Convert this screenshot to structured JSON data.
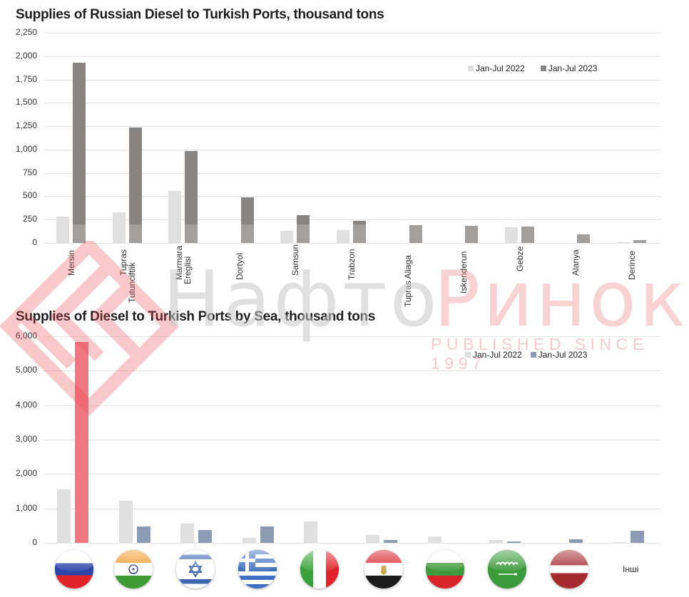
{
  "chart_data": [
    {
      "type": "bar",
      "title": "Supplies of Russian Diesel to Turkish Ports, thousand tons",
      "xlabel": "",
      "ylabel": "thousand tons",
      "ylim": [
        0,
        2250
      ],
      "yticks": [
        "0",
        "250",
        "500",
        "750",
        "1,000",
        "1,250",
        "1,500",
        "1,750",
        "2,000",
        "2,250"
      ],
      "grid": true,
      "legend_position": "top-right",
      "categories": [
        "Mersin",
        "Tupras Tutunciftlik",
        "Marmara Ereglisi",
        "Dortyol",
        "Samsun",
        "Trabzon",
        "Tupras Aliaga",
        "Iskenderun",
        "Gebze",
        "Alanya",
        "Derince"
      ],
      "category_labels": [
        [
          "Mersin"
        ],
        [
          "Tupras",
          "Tutunciftlik"
        ],
        [
          "Marmara",
          "Ereglisi"
        ],
        [
          "Dortyol"
        ],
        [
          "Samsun"
        ],
        [
          "Trabzon"
        ],
        [
          "Tupras Aliaga"
        ],
        [
          "Iskenderun"
        ],
        [
          "Gebze"
        ],
        [
          "Alanya"
        ],
        [
          "Derince"
        ]
      ],
      "series": [
        {
          "name": "Jan-Jul 2022",
          "color": "#e1e0e0",
          "values": [
            280,
            325,
            555,
            0,
            130,
            135,
            0,
            0,
            165,
            0,
            5
          ]
        },
        {
          "name": "Jan-Jul 2023",
          "color": "#888482",
          "values": [
            1930,
            1235,
            985,
            489,
            297,
            238,
            189,
            183,
            177,
            91,
            29
          ]
        }
      ],
      "data_labels": [
        "1,930",
        "1,235",
        "985",
        "489",
        "297",
        "238",
        "189",
        "183",
        "177",
        "91",
        "29"
      ]
    },
    {
      "type": "bar",
      "title": "Supplies of Diesel to Turkish Ports by Sea, thousand tons",
      "xlabel": "",
      "ylabel": "thousand tons",
      "ylim": [
        0,
        6000
      ],
      "yticks": [
        "0",
        "1,000",
        "2,000",
        "3,000",
        "4,000",
        "5,000",
        "6,000"
      ],
      "grid": true,
      "legend_position": "top-right",
      "categories": [
        "Russia",
        "India",
        "Israel",
        "Greece",
        "Italy",
        "Egypt",
        "Bulgaria",
        "Saudi Arabia",
        "Latvia",
        "Інші"
      ],
      "series": [
        {
          "name": "Jan-Jul 2022",
          "color": "#e1e0e0",
          "values": [
            1556,
            1230,
            550,
            150,
            630,
            220,
            190,
            80,
            0,
            20
          ]
        },
        {
          "name": "Jan-Jul 2023",
          "color": "#8c9bb3",
          "values": [
            5842,
            470,
            366,
            477,
            0,
            91,
            0,
            33,
            96,
            355
          ]
        }
      ],
      "highlight": {
        "category": "Russia",
        "series": "Jan-Jul 2023",
        "color": "#ef7880"
      },
      "data_labels_2022": [
        "1,556",
        "",
        "",
        "",
        "",
        "",
        "",
        "",
        "",
        ""
      ],
      "data_labels_2023": [
        "5,842",
        "470",
        "366",
        "477",
        "",
        "91",
        "",
        "33",
        "96",
        "355"
      ]
    }
  ],
  "chart1": {
    "title": "Supplies of Russian Diesel to Turkish Ports, thousand tons",
    "legend": {
      "s1": "Jan-Jul 2022",
      "s2": "Jan-Jul 2023"
    }
  },
  "chart2": {
    "title": "Supplies of Diesel to Turkish Ports by Sea, thousand tons",
    "legend": {
      "s1": "Jan-Jul 2022",
      "s2": "Jan-Jul 2023"
    },
    "others_label": "Інші",
    "flags": [
      "russia-flag",
      "india-flag",
      "israel-flag",
      "greece-flag",
      "italy-flag",
      "egypt-flag",
      "bulgaria-flag",
      "saudi-arabia-flag",
      "latvia-flag"
    ]
  },
  "watermark": {
    "left_word": "Нафто",
    "right_word": "Ринок",
    "tagline": "PUBLISHED SINCE 1997"
  }
}
